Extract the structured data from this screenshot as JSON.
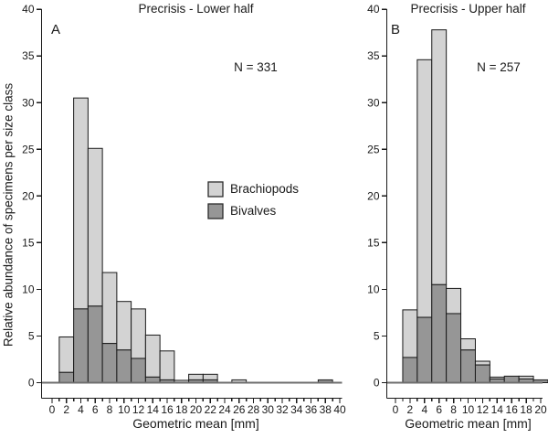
{
  "figure": {
    "y_axis_title": "Relative abundance of specimens per size class",
    "legend": {
      "items": [
        {
          "label": "Brachiopods",
          "color": "#d3d3d3"
        },
        {
          "label": "Bivalves",
          "color": "#969696"
        }
      ]
    },
    "colors": {
      "brachiopods": "#d3d3d3",
      "bivalves": "#969696",
      "bar_border": "#1a1a1a",
      "axis": "#1a1a1a",
      "baseline": "#6e6e6e",
      "text": "#1a1a1a",
      "background": "#ffffff"
    }
  },
  "chart_data": [
    {
      "type": "bar",
      "stacked": true,
      "panel_label": "A",
      "title": "Precrisis - Lower half",
      "annotation": "N = 331",
      "xlabel": "Geometric mean [mm]",
      "ylabel": "Relative abundance of specimens per size class",
      "xlim": [
        0,
        40
      ],
      "ylim": [
        0,
        40
      ],
      "x_major_tick_step": 2,
      "x_minor_tick_step": 1,
      "y_tick_step": 5,
      "bin_width": 2,
      "categories": [
        2,
        4,
        6,
        8,
        10,
        12,
        14,
        16,
        18,
        20,
        22,
        24,
        26,
        28,
        30,
        32,
        34,
        36,
        38
      ],
      "series": [
        {
          "name": "Bivalves",
          "values": [
            1.1,
            7.9,
            8.2,
            4.2,
            3.5,
            2.6,
            0.6,
            0.3,
            0,
            0.3,
            0.3,
            0,
            0,
            0,
            0,
            0,
            0,
            0,
            0.3
          ]
        },
        {
          "name": "Brachiopods",
          "values": [
            3.8,
            22.6,
            16.9,
            7.6,
            5.2,
            5.3,
            4.5,
            3.1,
            0.25,
            0.6,
            0.6,
            0,
            0.3,
            0,
            0,
            0,
            0,
            0,
            0
          ]
        }
      ]
    },
    {
      "type": "bar",
      "stacked": true,
      "panel_label": "B",
      "title": "Precrisis - Upper half",
      "annotation": "N = 257",
      "xlabel": "Geometric mean [mm]",
      "ylabel": "Relative abundance of specimens per size class",
      "xlim": [
        0,
        20
      ],
      "ylim": [
        0,
        40
      ],
      "x_major_tick_step": 2,
      "x_minor_tick_step": 1,
      "y_tick_step": 5,
      "bin_width": 2,
      "categories": [
        2,
        4,
        6,
        8,
        10,
        12,
        14,
        16,
        18,
        20
      ],
      "series": [
        {
          "name": "Bivalves",
          "values": [
            2.7,
            7.0,
            10.5,
            7.4,
            3.5,
            1.9,
            0.4,
            0.7,
            0.4,
            0.3
          ]
        },
        {
          "name": "Brachiopods",
          "values": [
            5.1,
            27.6,
            27.3,
            2.7,
            1.2,
            0.4,
            0.2,
            0,
            0.3,
            0
          ]
        }
      ]
    }
  ]
}
